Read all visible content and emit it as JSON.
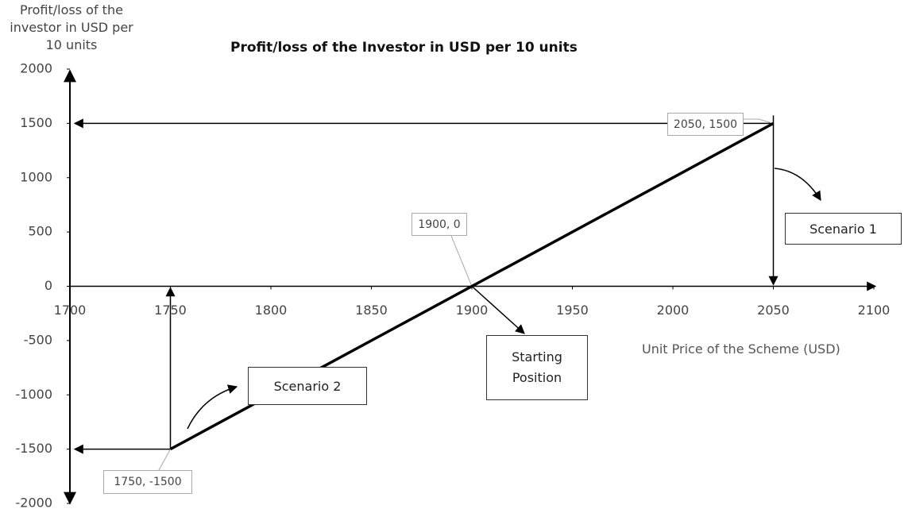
{
  "chart_data": {
    "type": "line",
    "title": "Profit/loss of the Investor in USD per 10 units",
    "x_label": "Unit Price of the Scheme (USD)",
    "y_label": "Profit/loss of the investor in USD per 10 units",
    "x": [
      1750,
      1900,
      2050
    ],
    "values": [
      -1500,
      0,
      1500
    ],
    "color": "#000000",
    "xlim": [
      1700,
      2100
    ],
    "xticks": [
      1700,
      1750,
      1800,
      1850,
      1900,
      1950,
      2000,
      2050,
      2100
    ],
    "ylim": [
      -2000,
      2000
    ],
    "yticks": [
      -2000,
      -1500,
      -1000,
      -500,
      0,
      500,
      1000,
      1500,
      2000
    ],
    "annotations": [
      "2050, 1500",
      "1900, 0",
      "1750, -1500",
      "Scenario 1",
      "Scenario 2",
      "Starting Position"
    ]
  }
}
